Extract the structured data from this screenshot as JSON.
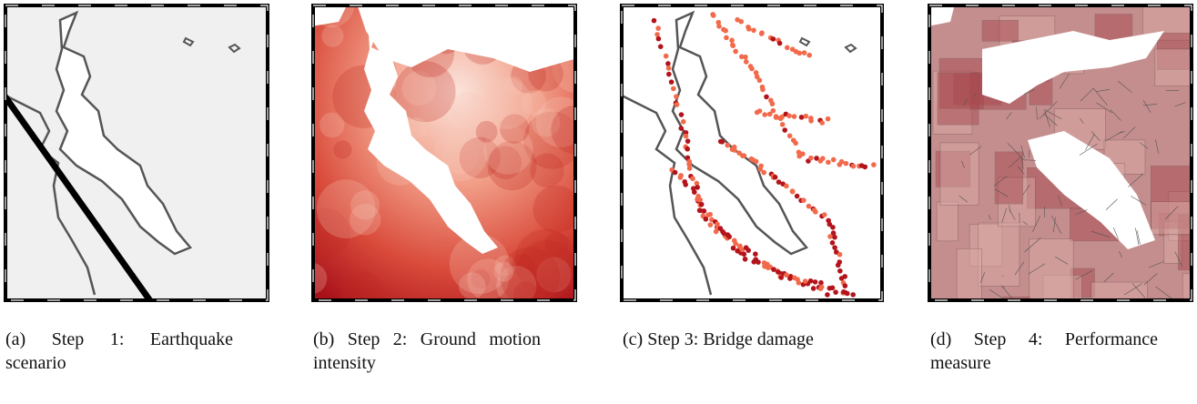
{
  "panels": [
    {
      "label": "(a)",
      "caption": "Step 1: Earthquake scenario"
    },
    {
      "label": "(b)",
      "caption": "Step 2: Ground motion intensity"
    },
    {
      "label": "(c)",
      "caption": "Step 3: Bridge damage"
    },
    {
      "label": "(d)",
      "caption": "Step 4: Performance measure"
    }
  ]
}
